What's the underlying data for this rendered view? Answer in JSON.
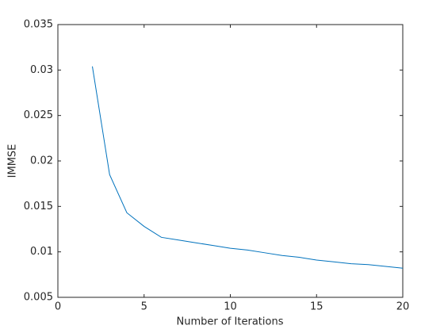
{
  "chart_data": {
    "type": "line",
    "xlabel": "Number of Iterations",
    "ylabel": "IMMSE",
    "x": [
      2,
      3,
      4,
      5,
      6,
      7,
      8,
      9,
      10,
      11,
      12,
      13,
      14,
      15,
      16,
      17,
      18,
      19,
      20
    ],
    "values": [
      0.0304,
      0.0185,
      0.0143,
      0.0128,
      0.0116,
      0.0113,
      0.011,
      0.0107,
      0.0104,
      0.0102,
      0.0099,
      0.0096,
      0.0094,
      0.0091,
      0.0089,
      0.0087,
      0.0086,
      0.0084,
      0.0082
    ],
    "color": "#0072bd",
    "xlim": [
      0,
      20
    ],
    "xticks": [
      0,
      5,
      10,
      15,
      20
    ],
    "ylim": [
      0.005,
      0.035
    ],
    "yticks": [
      0.005,
      0.01,
      0.015,
      0.02,
      0.025,
      0.03,
      0.035
    ],
    "grid": false
  }
}
